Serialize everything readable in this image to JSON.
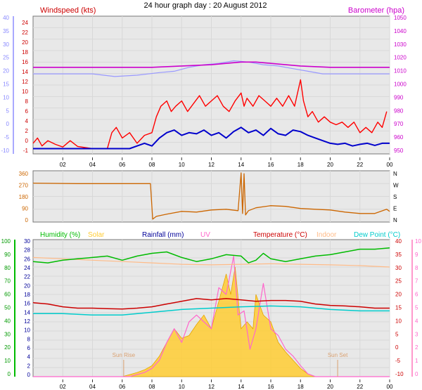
{
  "page_title": "24 hour graph day : 20 August 2012",
  "colors": {
    "wind": "#ff0000",
    "wind_avg": "#0000cc",
    "barometer": "#cc00cc",
    "baro_range": "#9999ff",
    "direction": "#cc6600",
    "humidity": "#00bb00",
    "solar": "#ffcc33",
    "rainfall": "#000099",
    "uv": "#ff66cc",
    "temperature": "#cc0000",
    "indoor": "#ffbb88",
    "dewpoint": "#00cccc",
    "sunrise": "#d9a070",
    "grid": "#d8d8d8",
    "panel_bg": "#e8e8e8"
  },
  "x_tick_labels": [
    "02",
    "04",
    "06",
    "08",
    "10",
    "12",
    "14",
    "16",
    "18",
    "20",
    "22",
    "00"
  ],
  "chart_data": [
    {
      "type": "line",
      "name": "wind-barometer-panel",
      "x_unit": "hour",
      "left_axis_label": "Windspeed (kts)",
      "right_axis_label": "Barometer (hpa)",
      "left_ticks": [
        "24",
        "22",
        "20",
        "18",
        "16",
        "14",
        "12",
        "10",
        "8",
        "6",
        "4",
        "2",
        "0",
        "-1"
      ],
      "right_ticks": [
        "1050",
        "1040",
        "1030",
        "1020",
        "1010",
        "1000",
        "990",
        "980",
        "970",
        "960",
        "950"
      ],
      "outer_ticks": [
        "40",
        "35",
        "30",
        "25",
        "20",
        "15",
        "10",
        "5",
        "0",
        "-5",
        "-10"
      ],
      "ylim_wind": [
        -1,
        25
      ],
      "ylim_baro": [
        947,
        1052
      ],
      "series": [
        {
          "key": "gust",
          "x": [
            0,
            0.3,
            0.6,
            1,
            1.5,
            2,
            2.5,
            3,
            3.5,
            4,
            4.5,
            5,
            5.3,
            5.6,
            6,
            6.5,
            7,
            7.5,
            8,
            8.3,
            8.6,
            9,
            9.3,
            9.6,
            10,
            10.4,
            10.8,
            11.2,
            11.6,
            12,
            12.4,
            12.8,
            13.2,
            13.6,
            14,
            14.2,
            14.4,
            14.8,
            15.2,
            15.6,
            16,
            16.4,
            16.8,
            17.2,
            17.6,
            18,
            18.2,
            18.5,
            18.8,
            19.2,
            19.6,
            20,
            20.4,
            20.8,
            21.2,
            21.6,
            22,
            22.4,
            22.8,
            23.2,
            23.5,
            23.8
          ],
          "values": [
            1,
            2,
            0.5,
            1.5,
            0.8,
            0.3,
            1.5,
            0.4,
            0.2,
            0,
            0,
            0,
            3,
            4,
            2,
            3,
            1,
            2.5,
            3,
            6,
            8,
            9,
            7,
            8,
            9,
            7,
            8.5,
            10,
            8,
            9,
            10,
            8,
            7,
            9,
            10.5,
            8,
            9.5,
            8,
            10,
            9,
            8,
            9.5,
            8,
            10,
            8,
            13,
            9,
            6,
            7,
            5,
            6,
            5,
            4.5,
            5,
            4,
            5,
            3,
            4,
            3,
            5,
            4,
            7
          ]
        },
        {
          "key": "average",
          "x": [
            0,
            1,
            2,
            3,
            4,
            5,
            6,
            6.5,
            7,
            7.5,
            8,
            8.5,
            9,
            9.5,
            10,
            10.5,
            11,
            11.5,
            12,
            12.5,
            13,
            13.5,
            14,
            14.5,
            15,
            15.5,
            16,
            16.5,
            17,
            17.5,
            18,
            18.5,
            19,
            19.5,
            20,
            20.5,
            21,
            21.5,
            22,
            22.5,
            23,
            23.5,
            24
          ],
          "values": [
            0,
            0,
            0,
            0,
            0,
            0,
            0,
            0,
            0.5,
            1,
            0.5,
            2,
            3,
            3.5,
            2.5,
            3,
            2.8,
            3.5,
            2.5,
            3,
            2,
            3.2,
            4,
            3,
            3.5,
            2.5,
            3.8,
            2.8,
            2.5,
            3.5,
            3.2,
            2.5,
            2,
            1.5,
            1,
            0.8,
            1,
            0.5,
            0.8,
            1,
            0.6,
            1,
            1
          ]
        },
        {
          "key": "barometer",
          "x": [
            0,
            4,
            8,
            10,
            12,
            13,
            14,
            15,
            16,
            18,
            20,
            22,
            24
          ],
          "values": [
            1013,
            1013,
            1013,
            1014,
            1015,
            1016,
            1017,
            1017,
            1016,
            1014,
            1013,
            1013,
            1013
          ]
        },
        {
          "key": "baro-range",
          "x": [
            0,
            4,
            5.5,
            7,
            8.5,
            9.5,
            10.5,
            11.5,
            12.5,
            13.5,
            14.5,
            15.5,
            16.5,
            17.5,
            18.5,
            19.5,
            24
          ],
          "values": [
            1008,
            1008,
            1006,
            1007,
            1009,
            1010,
            1013,
            1015,
            1016,
            1018,
            1017,
            1015,
            1014,
            1012,
            1010,
            1008,
            1008
          ]
        }
      ]
    },
    {
      "type": "line",
      "name": "wind-direction-panel",
      "x_unit": "hour",
      "left_ticks": [
        "360",
        "270",
        "180",
        "90",
        "0"
      ],
      "right_ticks": [
        "N",
        "W",
        "S",
        "E",
        "N"
      ],
      "ylim": [
        0,
        360
      ],
      "series": [
        {
          "key": "direction",
          "x": [
            0,
            3,
            6,
            7.9,
            8.05,
            8.3,
            9,
            10,
            11,
            12,
            13,
            13.8,
            14.0,
            14.1,
            14.2,
            14.3,
            14.5,
            15,
            16,
            17,
            18,
            19,
            20,
            21,
            22,
            23,
            23.8,
            24
          ],
          "values": [
            273,
            270,
            270,
            270,
            20,
            40,
            55,
            75,
            70,
            85,
            90,
            80,
            345,
            60,
            340,
            50,
            80,
            100,
            115,
            110,
            95,
            90,
            85,
            70,
            60,
            60,
            90,
            75
          ]
        }
      ]
    },
    {
      "type": "line",
      "name": "humidity-temperature-panel",
      "x_unit": "hour",
      "legend": [
        "Humidity (%)",
        "Solar",
        "Rainfall (mm)",
        "UV",
        "Temperature (°C)",
        "Indoor",
        "Dew Point (°C)"
      ],
      "humidity_ticks": [
        "100",
        "90",
        "80",
        "70",
        "60",
        "50",
        "40",
        "30",
        "20",
        "10",
        "0"
      ],
      "rain_ticks": [
        "30",
        "28",
        "26",
        "24",
        "22",
        "20",
        "18",
        "16",
        "14",
        "12",
        "10",
        "8",
        "6",
        "4",
        "2",
        "0"
      ],
      "temp_ticks": [
        "40",
        "35",
        "30",
        "25",
        "20",
        "15",
        "10",
        "5",
        "0",
        "-5",
        "-10"
      ],
      "uv_ticks": [
        "10",
        "9",
        "8",
        "7",
        "6",
        "5",
        "4",
        "3",
        "2",
        "1",
        "0"
      ],
      "ylim_humidity": [
        0,
        100
      ],
      "ylim_temp": [
        -10,
        40
      ],
      "ylim_uv": [
        0,
        10
      ],
      "sun_rise_label": "Sun Rise",
      "sun_set_label": "Sun Set",
      "sun_rise_hour": 6.1,
      "sun_set_hour": 20.5,
      "series": [
        {
          "key": "humidity",
          "x": [
            0,
            1,
            2,
            3,
            4,
            5,
            6,
            7,
            8,
            9,
            10,
            11,
            12,
            13,
            14,
            14.5,
            15,
            15.5,
            16,
            17,
            18,
            19,
            20,
            21,
            22,
            23,
            24
          ],
          "values": [
            84,
            83,
            85,
            86,
            87,
            88,
            85,
            88,
            90,
            91,
            87,
            84,
            86,
            89,
            88,
            83,
            85,
            90,
            86,
            84,
            86,
            88,
            89,
            91,
            93,
            93,
            94
          ]
        },
        {
          "key": "indoor",
          "x": [
            0,
            2,
            4,
            6,
            8,
            10,
            12,
            14,
            16,
            18,
            20,
            22,
            24
          ],
          "values": [
            33.5,
            33,
            32.5,
            32,
            31.5,
            31,
            30.8,
            31,
            31.2,
            31,
            30.8,
            30.5,
            30
          ]
        },
        {
          "key": "temperature",
          "x": [
            0,
            1,
            2,
            3,
            4,
            5,
            6,
            7,
            8,
            9,
            10,
            11,
            12,
            13,
            14,
            15,
            16,
            17,
            18,
            19,
            20,
            21,
            22,
            23,
            24
          ],
          "values": [
            17,
            16.5,
            15.5,
            15,
            15,
            14.8,
            14.7,
            15,
            15.5,
            16.5,
            17.5,
            18.5,
            18,
            18.5,
            18,
            17.5,
            17.8,
            17.8,
            17.5,
            16.5,
            16,
            15.8,
            15.5,
            15,
            15
          ]
        },
        {
          "key": "dewpoint",
          "x": [
            0,
            2,
            4,
            6,
            8,
            10,
            12,
            14,
            16,
            18,
            20,
            22,
            24
          ],
          "values": [
            13,
            13,
            12.5,
            12.5,
            13.5,
            14.5,
            15,
            15.5,
            15.8,
            15.5,
            14.5,
            14,
            14
          ]
        },
        {
          "key": "solar",
          "x": [
            0,
            6,
            7,
            7.5,
            8,
            8.5,
            9,
            9.5,
            10,
            10.5,
            11,
            11.5,
            12,
            12.5,
            13,
            13.3,
            13.6,
            14,
            14.4,
            14.8,
            15,
            15.5,
            16,
            16.5,
            17,
            17.5,
            18,
            18.5,
            19,
            20,
            24
          ],
          "values": [
            0,
            0,
            0.3,
            0.5,
            0.8,
            1.5,
            2.5,
            3.5,
            2.8,
            3.0,
            3.8,
            4.5,
            3.5,
            5.5,
            7.5,
            6,
            8,
            3.5,
            4,
            3.5,
            6,
            4.5,
            4,
            2.5,
            1.8,
            1.2,
            0.6,
            0.2,
            0,
            0,
            0
          ]
        },
        {
          "key": "uv",
          "x": [
            0,
            6.5,
            7.5,
            8,
            8.5,
            9,
            9.5,
            10,
            10.5,
            11,
            11.5,
            12,
            12.5,
            13,
            13.5,
            13.8,
            14.2,
            14.6,
            15,
            15.5,
            16,
            16.5,
            17,
            17.5,
            18,
            18.5,
            19,
            24
          ],
          "values": [
            0,
            0,
            0.3,
            0.6,
            1.2,
            2.5,
            3.5,
            2.5,
            4,
            4.5,
            4,
            3.5,
            6.5,
            6,
            8.8,
            4.5,
            4.8,
            2,
            3.5,
            6.8,
            3.5,
            3,
            2,
            1.5,
            0.8,
            0.2,
            0,
            0
          ]
        }
      ]
    }
  ]
}
